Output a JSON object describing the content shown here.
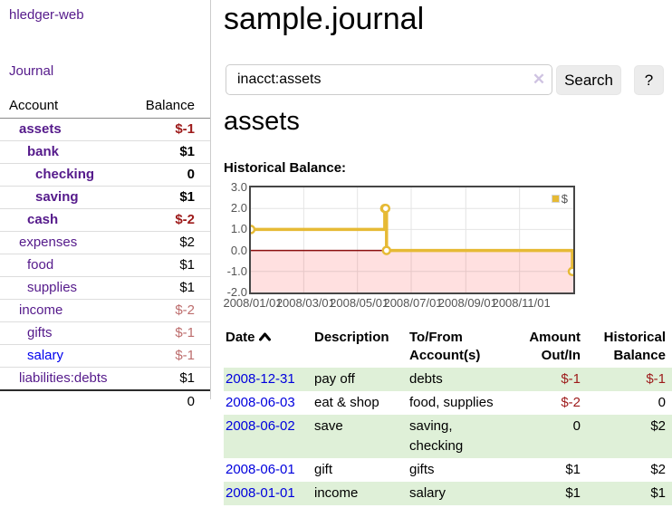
{
  "brand": "hledger-web",
  "nav": {
    "journal": "Journal"
  },
  "sidebar": {
    "accounts": {
      "header_account": "Account",
      "header_balance": "Balance",
      "rows": [
        {
          "name": "assets",
          "depth": 1,
          "balance": "$-1",
          "bold": true,
          "balance_style": "neg"
        },
        {
          "name": "bank",
          "depth": 2,
          "balance": "$1",
          "bold": true,
          "balance_style": ""
        },
        {
          "name": "checking",
          "depth": 3,
          "balance": "0",
          "bold": true,
          "balance_style": ""
        },
        {
          "name": "saving",
          "depth": 3,
          "balance": "$1",
          "bold": true,
          "balance_style": ""
        },
        {
          "name": "cash",
          "depth": 2,
          "balance": "$-2",
          "bold": true,
          "balance_style": "neg"
        },
        {
          "name": "expenses",
          "depth": 1,
          "balance": "$2",
          "bold": false,
          "balance_style": ""
        },
        {
          "name": "food",
          "depth": 2,
          "balance": "$1",
          "bold": false,
          "balance_style": ""
        },
        {
          "name": "supplies",
          "depth": 2,
          "balance": "$1",
          "bold": false,
          "balance_style": ""
        },
        {
          "name": "income",
          "depth": 1,
          "balance": "$-2",
          "bold": false,
          "balance_style": "negl"
        },
        {
          "name": "gifts",
          "depth": 2,
          "balance": "$-1",
          "bold": false,
          "balance_style": "negl"
        },
        {
          "name": "salary",
          "depth": 2,
          "balance": "$-1",
          "bold": false,
          "balance_style": "negl",
          "link_blue": true
        },
        {
          "name": "liabilities:debts",
          "depth": 1,
          "balance": "$1",
          "bold": false,
          "balance_style": ""
        }
      ],
      "total": "0"
    }
  },
  "main": {
    "title": "sample.journal",
    "search": {
      "value": "inacct:assets",
      "clear_icon": "✕",
      "search_label": "Search",
      "help_label": "?"
    },
    "account_heading": "assets",
    "section_label": "Historical Balance:"
  },
  "chart_data": {
    "type": "line",
    "step": true,
    "title": "Historical Balance:",
    "series": [
      {
        "name": "$",
        "color": "#e6ba35",
        "points": [
          [
            "2008-01-01",
            1
          ],
          [
            "2008-06-01",
            2
          ],
          [
            "2008-06-02",
            2
          ],
          [
            "2008-06-03",
            0
          ],
          [
            "2008-12-31",
            -1
          ]
        ]
      }
    ],
    "x_range": [
      "2008-01-01",
      "2009-01-01"
    ],
    "ylim": [
      -2,
      3
    ],
    "y_ticks": [
      3,
      2,
      1,
      0,
      -1,
      -2
    ],
    "x_ticks": [
      "2008/01/01",
      "2008/03/01",
      "2008/05/01",
      "2008/07/01",
      "2008/09/01",
      "2008/11/01"
    ],
    "grid": true,
    "grid_color": "#e4e4e4",
    "axis_text_color": "#545454",
    "legend_position": "top-right",
    "zero_line_color": "#8b0f0f",
    "negative_region_color": "rgba(255,0,0,0.12)"
  },
  "register": {
    "headers": {
      "date": "Date",
      "description": "Description",
      "tofrom": "To/From Account(s)",
      "amount": "Amount Out/In",
      "balance": "Historical Balance"
    },
    "sort_column": "date",
    "sort_direction": "ascending",
    "rows": [
      {
        "date": "2008-12-31",
        "description": "pay off",
        "tofrom": "debts",
        "amount": "$-1",
        "balance": "$-1",
        "amount_neg": true,
        "balance_neg": true
      },
      {
        "date": "2008-06-03",
        "description": "eat & shop",
        "tofrom": "food, supplies",
        "amount": "$-2",
        "balance": "0",
        "amount_neg": true,
        "balance_neg": false
      },
      {
        "date": "2008-06-02",
        "description": "save",
        "tofrom": "saving, checking",
        "amount": "0",
        "balance": "$2",
        "amount_neg": false,
        "balance_neg": false
      },
      {
        "date": "2008-06-01",
        "description": "gift",
        "tofrom": "gifts",
        "amount": "$1",
        "balance": "$2",
        "amount_neg": false,
        "balance_neg": false
      },
      {
        "date": "2008-01-01",
        "description": "income",
        "tofrom": "salary",
        "amount": "$1",
        "balance": "$1",
        "amount_neg": false,
        "balance_neg": false
      }
    ]
  }
}
